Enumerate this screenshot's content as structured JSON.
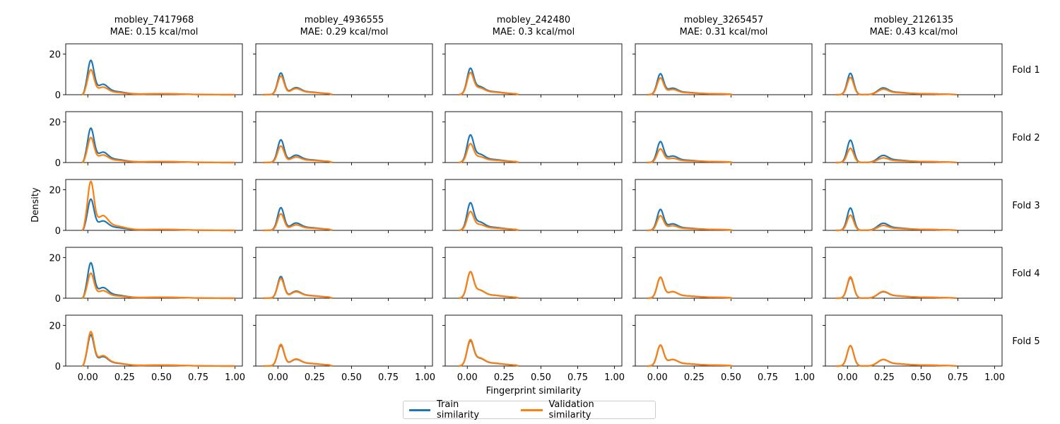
{
  "colors": {
    "train": "#1f77b4",
    "validation": "#ff7f0e"
  },
  "legend": {
    "items": [
      "Train similarity",
      "Validation similarity"
    ],
    "placement": "bottom-center"
  },
  "chart_data": {
    "type": "area",
    "layout": "5x5 facet grid of kernel density curves",
    "xlabel": "Fingerprint similarity",
    "ylabel": "Density",
    "xlim": [
      -0.15,
      1.05
    ],
    "ylim": [
      0,
      25
    ],
    "xticks": [
      "0.00",
      "0.25",
      "0.50",
      "0.75",
      "1.00"
    ],
    "yticks": [
      "0",
      "20"
    ],
    "grid": false,
    "columns": [
      {
        "molecule": "mobley_7417968",
        "mae": "MAE: 0.15 kcal/mol"
      },
      {
        "molecule": "mobley_4936555",
        "mae": "MAE: 0.29 kcal/mol"
      },
      {
        "molecule": "mobley_242480",
        "mae": "MAE: 0.3 kcal/mol"
      },
      {
        "molecule": "mobley_3265457",
        "mae": "MAE: 0.31 kcal/mol"
      },
      {
        "molecule": "mobley_2126135",
        "mae": "MAE: 0.43 kcal/mol"
      }
    ],
    "rows": [
      "Fold 1",
      "Fold 2",
      "Fold 3",
      "Fold 4",
      "Fold 5"
    ],
    "series": [
      {
        "name": "Train similarity",
        "color": "#1f77b4"
      },
      {
        "name": "Validation similarity",
        "color": "#ff7f0e"
      }
    ],
    "curve_params": [
      {
        "xmin": -0.04,
        "xmax": 1.0,
        "secondary": 0.1,
        "tail": 0.5
      },
      {
        "xmin": -0.1,
        "xmax": 0.37,
        "secondary": 0.12,
        "tail": 0.3
      },
      {
        "xmin": -0.06,
        "xmax": 0.35,
        "secondary": 0.08,
        "tail": 0.25
      },
      {
        "xmin": -0.07,
        "xmax": 0.51,
        "secondary": 0.1,
        "tail": 0.35
      },
      {
        "xmin": -0.08,
        "xmax": 0.74,
        "secondary": 0.24,
        "tail": 0.5
      }
    ],
    "peak_density": [
      [
        {
          "train": 16.5,
          "validation": 12
        },
        {
          "train": 10.5,
          "validation": 9
        },
        {
          "train": 12,
          "validation": 10
        },
        {
          "train": 10,
          "validation": 8
        },
        {
          "train": 10.5,
          "validation": 8.5
        }
      ],
      [
        {
          "train": 16.5,
          "validation": 12
        },
        {
          "train": 11,
          "validation": 8
        },
        {
          "train": 12.5,
          "validation": 8.5
        },
        {
          "train": 10,
          "validation": 6.5
        },
        {
          "train": 11,
          "validation": 7
        }
      ],
      [
        {
          "train": 15,
          "validation": 23.5
        },
        {
          "train": 11,
          "validation": 8
        },
        {
          "train": 12.5,
          "validation": 8.5
        },
        {
          "train": 10,
          "validation": 7
        },
        {
          "train": 11,
          "validation": 7.5
        }
      ],
      [
        {
          "train": 17,
          "validation": 12
        },
        {
          "train": 10.5,
          "validation": 9.5
        },
        {
          "train": 12,
          "validation": 12
        },
        {
          "train": 10,
          "validation": 10
        },
        {
          "train": 10,
          "validation": 10.5
        }
      ],
      [
        {
          "train": 15,
          "validation": 16.5
        },
        {
          "train": 10,
          "validation": 10.5
        },
        {
          "train": 11.5,
          "validation": 12
        },
        {
          "train": 10,
          "validation": 10
        },
        {
          "train": 10,
          "validation": 10
        }
      ]
    ]
  }
}
